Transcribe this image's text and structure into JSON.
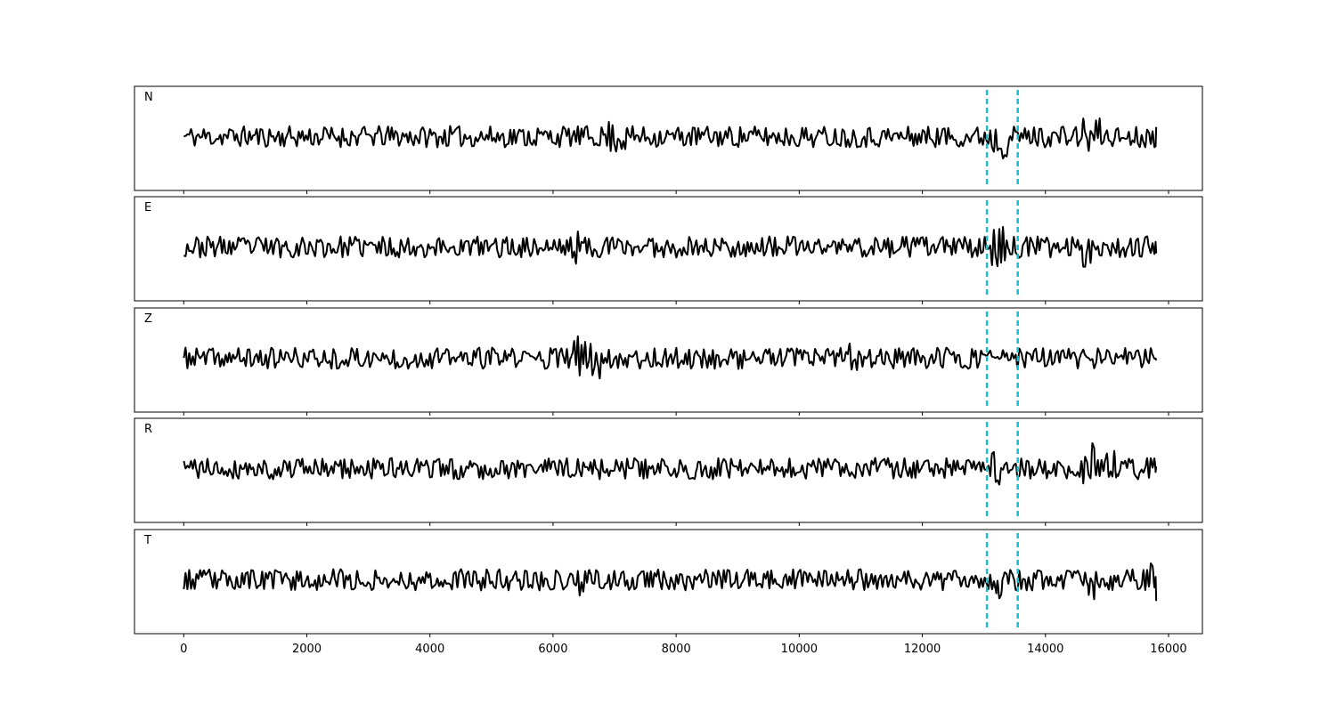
{
  "chart_data": {
    "type": "line",
    "x_range": [
      0,
      15800
    ],
    "xlim": [
      -800,
      16550
    ],
    "x_ticks": [
      "0",
      "2000",
      "4000",
      "6000",
      "8000",
      "10000",
      "12000",
      "14000",
      "16000"
    ],
    "markers": [
      13050,
      13550
    ],
    "marker_color": "#17becf",
    "trace_color": "#000000",
    "panels": [
      {
        "label": "N",
        "seed": 11,
        "bursts": [
          [
            6800,
            7200,
            1.6
          ],
          [
            13100,
            13400,
            2.1
          ],
          [
            14600,
            14900,
            1.9
          ]
        ],
        "end_value": 0.9
      },
      {
        "label": "E",
        "seed": 23,
        "bursts": [
          [
            6300,
            6500,
            1.6
          ],
          [
            13100,
            13400,
            1.9
          ],
          [
            14600,
            14800,
            1.9
          ]
        ],
        "end_value": -0.6
      },
      {
        "label": "Z",
        "seed": 37,
        "bursts": [
          [
            6300,
            6800,
            2.1
          ],
          [
            10800,
            10950,
            1.6
          ]
        ],
        "end_value": -0.2
      },
      {
        "label": "R",
        "seed": 41,
        "bursts": [
          [
            13100,
            13300,
            2.2
          ],
          [
            14600,
            14800,
            2.4
          ],
          [
            14950,
            15150,
            1.8
          ]
        ],
        "end_value": 0.2
      },
      {
        "label": "T",
        "seed": 53,
        "bursts": [
          [
            6400,
            6600,
            1.7
          ],
          [
            7100,
            7200,
            1.8
          ],
          [
            13200,
            13300,
            1.9
          ],
          [
            14700,
            14800,
            1.9
          ],
          [
            15700,
            15800,
            1.8
          ]
        ],
        "end_value": -1.1
      }
    ]
  }
}
